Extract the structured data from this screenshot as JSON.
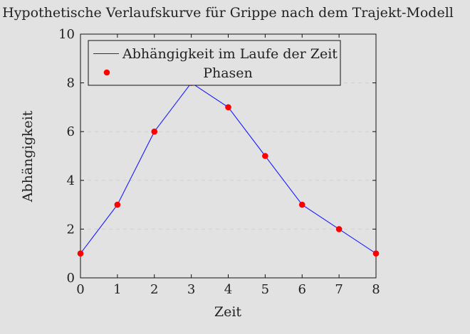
{
  "chart_data": {
    "type": "line",
    "title": "Hypothetische Verlaufskurve für Grippe nach dem Trajekt-Modell",
    "xlabel": "Zeit",
    "ylabel": "Abhängigkeit",
    "xlim": [
      0,
      8
    ],
    "ylim": [
      0,
      10
    ],
    "x_ticks": [
      0,
      1,
      2,
      3,
      4,
      5,
      6,
      7,
      8
    ],
    "y_ticks": [
      0,
      2,
      4,
      6,
      8,
      10
    ],
    "grid": "horizontal-dashed",
    "legend_position": "top-left",
    "series": [
      {
        "name": "Abhängigkeit im Laufe der Zeit",
        "type": "line",
        "color": "#1a1aff",
        "x": [
          0,
          1,
          2,
          3,
          4,
          5,
          6,
          7,
          8
        ],
        "y": [
          1,
          3,
          6,
          8,
          7,
          5,
          3,
          2,
          1
        ]
      },
      {
        "name": "Phasen",
        "type": "scatter",
        "color": "#ff0000",
        "x": [
          0,
          1,
          2,
          3,
          4,
          5,
          6,
          7,
          8
        ],
        "y": [
          1,
          3,
          6,
          8,
          7,
          5,
          3,
          2,
          1
        ]
      }
    ]
  }
}
